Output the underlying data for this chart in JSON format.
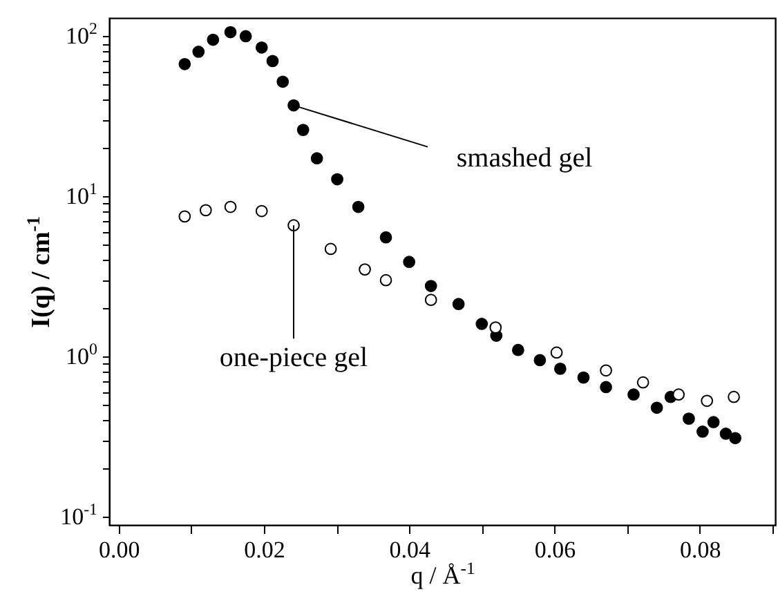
{
  "chart_data": {
    "type": "scatter",
    "xlabel": "q / Å$^{-1}$",
    "ylabel": "I(q) / cm$^{-1}$",
    "log": "y",
    "grid": false,
    "marker": "circle",
    "xlim": [
      -0.0013,
      0.0904
    ],
    "ylim": [
      0.089,
      130
    ],
    "xticks": [
      {
        "value": 0,
        "label": "0.00"
      },
      {
        "value": 0.01,
        "label": null
      },
      {
        "value": 0.02,
        "label": "0.02"
      },
      {
        "value": 0.03,
        "label": null
      },
      {
        "value": 0.04,
        "label": "0.04"
      },
      {
        "value": 0.05,
        "label": null
      },
      {
        "value": 0.06,
        "label": "0.06"
      },
      {
        "value": 0.07,
        "label": null
      },
      {
        "value": 0.08,
        "label": "0.08"
      },
      {
        "value": 0.09,
        "label": null
      }
    ],
    "yticks": [
      {
        "value": 0.1,
        "label": "10$^{-1}$"
      },
      {
        "value": 0.2,
        "label": null
      },
      {
        "value": 0.3,
        "label": null
      },
      {
        "value": 0.4,
        "label": null
      },
      {
        "value": 0.5,
        "label": null
      },
      {
        "value": 0.6,
        "label": null
      },
      {
        "value": 0.7,
        "label": null
      },
      {
        "value": 0.8,
        "label": null
      },
      {
        "value": 0.9,
        "label": null
      },
      {
        "value": 1,
        "label": "10$^{0}$"
      },
      {
        "value": 2,
        "label": null
      },
      {
        "value": 3,
        "label": null
      },
      {
        "value": 4,
        "label": null
      },
      {
        "value": 5,
        "label": null
      },
      {
        "value": 6,
        "label": null
      },
      {
        "value": 7,
        "label": null
      },
      {
        "value": 8,
        "label": null
      },
      {
        "value": 9,
        "label": null
      },
      {
        "value": 10,
        "label": "10$^{1}$"
      },
      {
        "value": 20,
        "label": null
      },
      {
        "value": 30,
        "label": null
      },
      {
        "value": 40,
        "label": null
      },
      {
        "value": 50,
        "label": null
      },
      {
        "value": 60,
        "label": null
      },
      {
        "value": 70,
        "label": null
      },
      {
        "value": 80,
        "label": null
      },
      {
        "value": 90,
        "label": null
      },
      {
        "value": 100,
        "label": "10$^{2}$"
      }
    ],
    "series": [
      {
        "color": "#000000",
        "x": [
          0.0091,
          0.011,
          0.013,
          0.0154,
          0.0175,
          0.0197,
          0.0212,
          0.0226,
          0.0241,
          0.0254,
          0.0273,
          0.0301,
          0.033,
          0.0368,
          0.04,
          0.043,
          0.0468,
          0.05,
          0.052,
          0.055,
          0.058,
          0.0608,
          0.064,
          0.0671,
          0.0709,
          0.0741,
          0.076,
          0.0785,
          0.0804,
          0.0819,
          0.0836,
          0.0849
        ],
        "values": [
          67,
          80,
          95,
          106,
          100,
          85,
          70,
          52,
          37,
          26,
          17.3,
          12.8,
          8.6,
          5.55,
          3.9,
          2.76,
          2.13,
          1.6,
          1.35,
          1.1,
          0.95,
          0.84,
          0.74,
          0.645,
          0.58,
          0.48,
          0.56,
          0.41,
          0.34,
          0.39,
          0.33,
          0.31
        ]
      },
      {
        "color": "#ffffff",
        "x": [
          0.0091,
          0.012,
          0.0154,
          0.0197,
          0.0241,
          0.0292,
          0.0339,
          0.0368,
          0.043,
          0.0519,
          0.0603,
          0.0671,
          0.0722,
          0.0771,
          0.081,
          0.0847
        ],
        "values": [
          7.5,
          8.2,
          8.6,
          8.1,
          6.6,
          4.7,
          3.5,
          3.0,
          2.26,
          1.52,
          1.06,
          0.82,
          0.69,
          0.58,
          0.53,
          0.56
        ]
      }
    ],
    "annotations": [
      {
        "text": "smashed gel",
        "x": 0.0241,
        "y": 37
      },
      {
        "text": "one-piece gel",
        "x": 0.0241,
        "y": 6.6
      }
    ]
  }
}
